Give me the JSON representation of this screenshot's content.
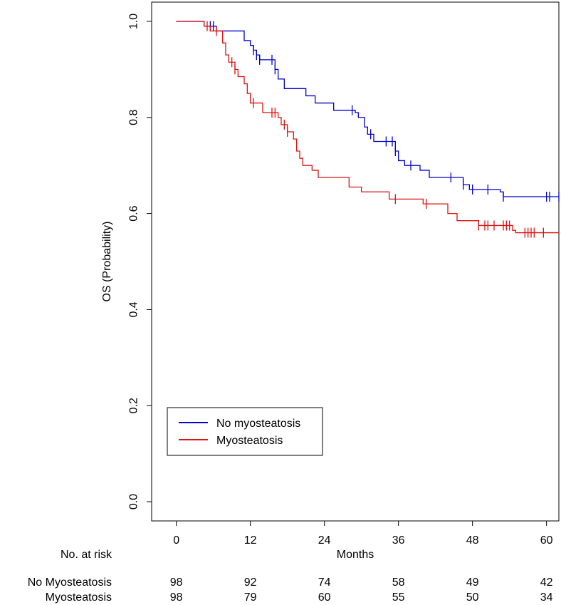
{
  "chart_data": {
    "type": "line",
    "subtype": "kaplan-meier",
    "title": "",
    "xlabel": "Months",
    "ylabel": "OS (Probability)",
    "xlim": [
      -4,
      62
    ],
    "ylim": [
      -0.04,
      1.04
    ],
    "xticks": [
      0,
      12,
      24,
      36,
      48,
      60
    ],
    "yticks": [
      0.0,
      0.2,
      0.4,
      0.6,
      0.8,
      1.0
    ],
    "ytick_labels": [
      "0.0",
      "0.2",
      "0.4",
      "0.6",
      "0.8",
      "1.0"
    ],
    "legend": {
      "position": "bottom-left",
      "entries": [
        "No myosteatosis",
        "Myosteatosis"
      ]
    },
    "series": [
      {
        "name": "No myosteatosis",
        "color": "#0000cc",
        "steps": [
          [
            0,
            1.0
          ],
          [
            4.5,
            0.99
          ],
          [
            6.5,
            0.98
          ],
          [
            11,
            0.96
          ],
          [
            12,
            0.95
          ],
          [
            12.5,
            0.94
          ],
          [
            13,
            0.93
          ],
          [
            13.5,
            0.92
          ],
          [
            14.5,
            0.92
          ],
          [
            16,
            0.9
          ],
          [
            16.5,
            0.88
          ],
          [
            17.5,
            0.86
          ],
          [
            21,
            0.845
          ],
          [
            22.5,
            0.83
          ],
          [
            25.5,
            0.815
          ],
          [
            29,
            0.81
          ],
          [
            29.5,
            0.8
          ],
          [
            30.5,
            0.78
          ],
          [
            31,
            0.765
          ],
          [
            32,
            0.75
          ],
          [
            35.5,
            0.73
          ],
          [
            36,
            0.71
          ],
          [
            37,
            0.7
          ],
          [
            39.5,
            0.69
          ],
          [
            41,
            0.675
          ],
          [
            46.5,
            0.66
          ],
          [
            47.5,
            0.65
          ],
          [
            52.5,
            0.645
          ],
          [
            53,
            0.635
          ],
          [
            62,
            0.635
          ]
        ],
        "censor": [
          5.5,
          6,
          12.5,
          13,
          13.5,
          15.5,
          16,
          28.5,
          31.5,
          34,
          35,
          35.5,
          38,
          44.5,
          46.5,
          48,
          50.5,
          53,
          60,
          60.5,
          62
        ]
      },
      {
        "name": "Myosteatosis",
        "color": "#dd1111",
        "steps": [
          [
            0,
            1.0
          ],
          [
            4.5,
            0.99
          ],
          [
            5.5,
            0.98
          ],
          [
            7.5,
            0.955
          ],
          [
            8,
            0.93
          ],
          [
            8.5,
            0.915
          ],
          [
            9.5,
            0.9
          ],
          [
            10,
            0.885
          ],
          [
            11,
            0.87
          ],
          [
            11.5,
            0.85
          ],
          [
            12,
            0.83
          ],
          [
            14,
            0.81
          ],
          [
            16.5,
            0.8
          ],
          [
            17,
            0.785
          ],
          [
            18,
            0.77
          ],
          [
            19,
            0.755
          ],
          [
            19.5,
            0.73
          ],
          [
            20,
            0.715
          ],
          [
            20.5,
            0.7
          ],
          [
            22,
            0.69
          ],
          [
            23,
            0.675
          ],
          [
            28,
            0.655
          ],
          [
            30,
            0.645
          ],
          [
            34.5,
            0.63
          ],
          [
            40,
            0.62
          ],
          [
            44,
            0.6
          ],
          [
            45.5,
            0.585
          ],
          [
            49,
            0.575
          ],
          [
            54.5,
            0.565
          ],
          [
            55,
            0.56
          ],
          [
            62,
            0.56
          ]
        ],
        "censor": [
          5,
          6.5,
          9,
          9.5,
          12.5,
          15.5,
          16,
          17.5,
          18,
          35.5,
          40.5,
          49,
          50,
          50.5,
          51.5,
          53,
          53.5,
          54,
          56.5,
          57,
          57.5,
          58,
          59.5
        ]
      }
    ],
    "risk_table": {
      "header": "No. at risk",
      "rows": [
        {
          "label": "No Myosteatosis",
          "values": [
            "98",
            "92",
            "74",
            "58",
            "49",
            "42"
          ]
        },
        {
          "label": "Myosteatosis",
          "values": [
            "98",
            "79",
            "60",
            "55",
            "50",
            "34"
          ]
        }
      ]
    }
  }
}
